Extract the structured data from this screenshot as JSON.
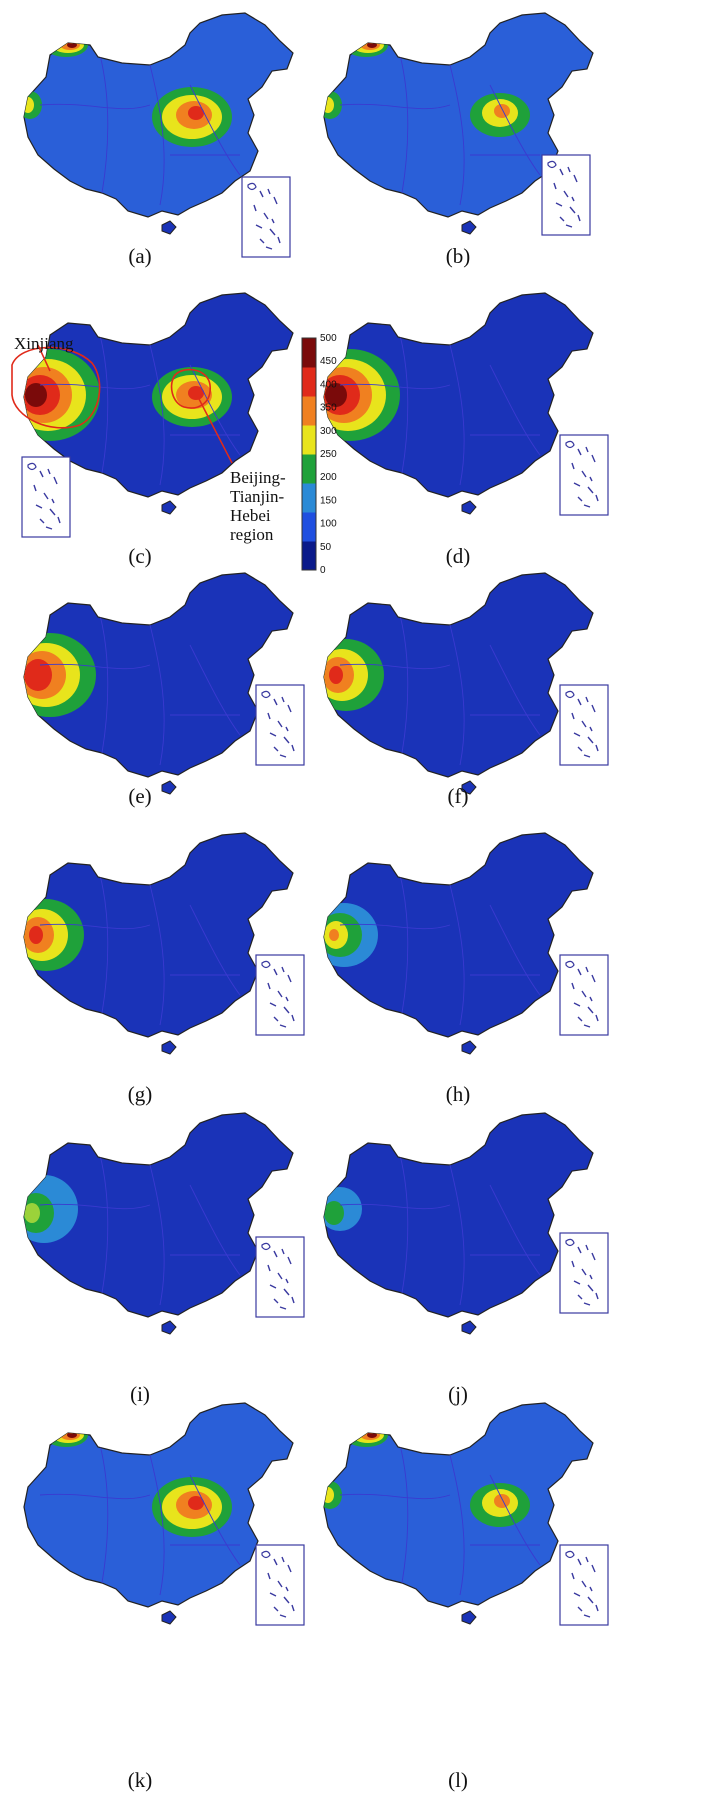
{
  "figure": {
    "panels": [
      {
        "label": "(a)",
        "hotspots": [
          "xinjiang-north",
          "xinjiang-west",
          "bth"
        ]
      },
      {
        "label": "(b)",
        "hotspots": [
          "xinjiang-north",
          "xinjiang-west",
          "bth-small"
        ]
      },
      {
        "label": "(c)",
        "hotspots": [
          "xinjiang-max",
          "bth"
        ],
        "annotated": true
      },
      {
        "label": "(d)",
        "hotspots": [
          "xinjiang-max"
        ]
      },
      {
        "label": "(e)",
        "hotspots": [
          "xinjiang-high"
        ]
      },
      {
        "label": "(f)",
        "hotspots": [
          "xinjiang-mid"
        ]
      },
      {
        "label": "(g)",
        "hotspots": [
          "xinjiang-mid"
        ]
      },
      {
        "label": "(h)",
        "hotspots": [
          "xinjiang-low"
        ]
      },
      {
        "label": "(i)",
        "hotspots": [
          "xinjiang-green"
        ]
      },
      {
        "label": "(j)",
        "hotspots": [
          "xinjiang-faint"
        ]
      },
      {
        "label": "(k)",
        "hotspots": [
          "xinjiang-north",
          "bth"
        ]
      },
      {
        "label": "(l)",
        "hotspots": [
          "xinjiang-north",
          "xinjiang-west",
          "bth-small"
        ]
      }
    ],
    "annotations": {
      "xinjiang": "Xinjiang",
      "bth_line1": "Beijing-",
      "bth_line2": "Tianjin-",
      "bth_line3": "Hebei",
      "bth_line4": "region"
    },
    "colorbar": {
      "ticks": [
        "500",
        "450",
        "400",
        "350",
        "300",
        "250",
        "200",
        "150",
        "100",
        "50",
        "0"
      ],
      "min": 0,
      "max": 500,
      "colors": [
        "#0a1a8a",
        "#1f4fe0",
        "#2b8ad6",
        "#1fa13a",
        "#e8e41c",
        "#f08020",
        "#e02a1a",
        "#7a0a0a"
      ]
    }
  }
}
